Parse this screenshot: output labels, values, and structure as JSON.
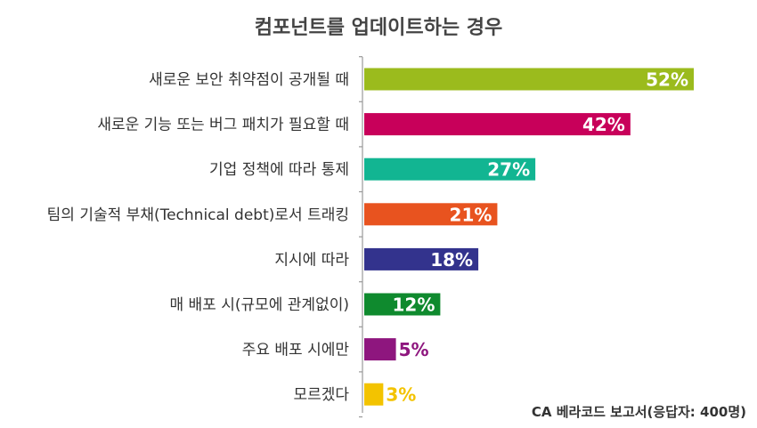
{
  "chart_data": {
    "type": "bar",
    "orientation": "horizontal",
    "title": "컴포넌트를 업데이트하는 경우",
    "categories": [
      "새로운 보안 취약점이 공개될 때",
      "새로운 기능 또는 버그 패치가 필요할 때",
      "기업 정책에 따라 통제",
      "팀의 기술적 부채(Technical debt)로서 트래킹",
      "지시에 따라",
      "매 배포 시(규모에 관계없이)",
      "주요 배포 시에만",
      "모르겠다"
    ],
    "values": [
      52,
      42,
      27,
      21,
      18,
      12,
      5,
      3
    ],
    "value_labels": [
      "52%",
      "42%",
      "27%",
      "21%",
      "18%",
      "12%",
      "5%",
      "3%"
    ],
    "colors": [
      "#9bbb1d",
      "#c8005a",
      "#12b592",
      "#e8531f",
      "#33338d",
      "#0f8a2e",
      "#8e167e",
      "#f3c300"
    ],
    "label_colors_outside": [
      "#8e167e",
      "#f3c300"
    ],
    "xlim": [
      0,
      60
    ],
    "grid": false,
    "legend": "none"
  },
  "source": "CA 베라코드 보고서(응답자: 400명)"
}
